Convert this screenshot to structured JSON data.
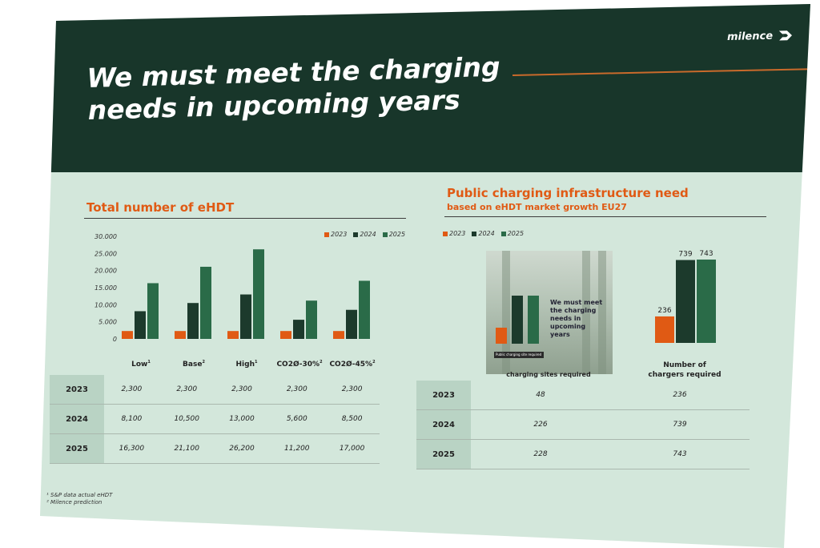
{
  "slide": {
    "title_line1": "We must meet the charging",
    "title_line2": "needs in upcoming years",
    "logo": "milence",
    "colors": {
      "dark_green": "#18362a",
      "background": "#d3e7db",
      "orange": "#e05a14",
      "y2024": "#1c3a2c",
      "y2025": "#2a6b48"
    }
  },
  "left": {
    "title": "Total number of eHDT",
    "chart_data": {
      "type": "bar",
      "categories": [
        "Low",
        "Base",
        "High",
        "CO2Ø-30%",
        "CO2Ø-45%"
      ],
      "category_marks": [
        "1",
        "2",
        "1",
        "2",
        "2"
      ],
      "series": [
        {
          "name": "2023",
          "values": [
            2300,
            2300,
            2300,
            2300,
            2300
          ],
          "color": "#e05a14"
        },
        {
          "name": "2024",
          "values": [
            8100,
            10500,
            13000,
            5600,
            8500
          ],
          "color": "#1c3a2c"
        },
        {
          "name": "2025",
          "values": [
            16300,
            21100,
            26200,
            11200,
            17000
          ],
          "color": "#2a6b48"
        }
      ],
      "yticks": [
        "30.000",
        "25.000",
        "20.000",
        "15.000",
        "10.000",
        "5.000",
        "0"
      ],
      "ylim": [
        0,
        30000
      ],
      "legend_placement": "top-right"
    },
    "table": {
      "rows": [
        {
          "year": "2023",
          "cells": [
            "2,300",
            "2,300",
            "2,300",
            "2,300",
            "2,300"
          ]
        },
        {
          "year": "2024",
          "cells": [
            "8,100",
            "10,500",
            "13,000",
            "5,600",
            "8,500"
          ]
        },
        {
          "year": "2025",
          "cells": [
            "16,300",
            "21,100",
            "26,200",
            "11,200",
            "17,000"
          ]
        }
      ]
    },
    "footnotes": [
      "¹ S&P data actual eHDT",
      "² Milence prediction"
    ]
  },
  "right": {
    "title": "Public charging infrastructure need",
    "subtitle": "based on eHDT market growth EU27",
    "legend": [
      "2023",
      "2024",
      "2025"
    ],
    "chart_data": {
      "type": "bar",
      "categories": [
        "Number of charging sites required",
        "Number of chargers required"
      ],
      "series": [
        {
          "name": "2023",
          "values": [
            48,
            236
          ]
        },
        {
          "name": "2024",
          "values": [
            226,
            739
          ]
        },
        {
          "name": "2025",
          "values": [
            228,
            743
          ]
        }
      ],
      "data_labels_visible": [
        "236",
        "739",
        "743"
      ]
    },
    "col_label_sites": "charging sites required",
    "col_label_chargers_1": "Number of",
    "col_label_chargers_2": "chargers required",
    "photo_text": "We must meet the charging needs in upcoming years",
    "photo_strip": "Public charging site required",
    "table": {
      "rows": [
        {
          "year": "2023",
          "cells": [
            "48",
            "236"
          ]
        },
        {
          "year": "2024",
          "cells": [
            "226",
            "739"
          ]
        },
        {
          "year": "2025",
          "cells": [
            "228",
            "743"
          ]
        }
      ]
    }
  }
}
